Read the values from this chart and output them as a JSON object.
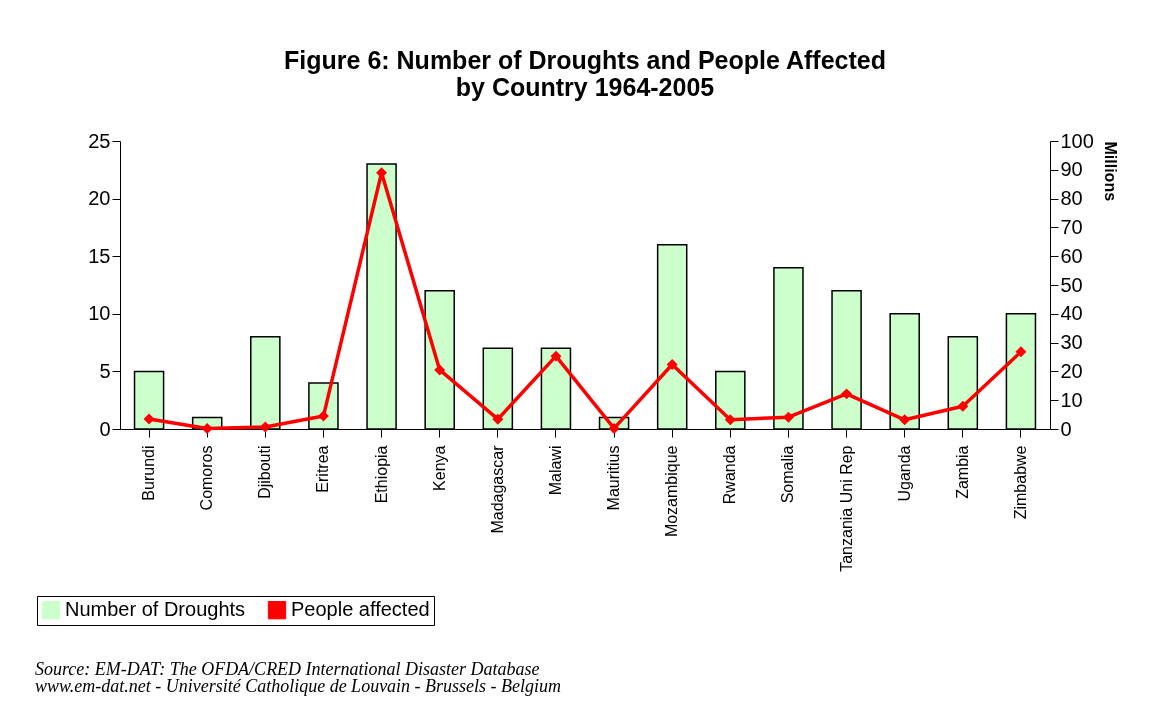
{
  "chart_data": {
    "type": "bar",
    "title": [
      "Figure 6: Number of Droughts and People Affected",
      "by Country 1964-2005"
    ],
    "categories": [
      "Burundi",
      "Comoros",
      "Djibouti",
      "Eritrea",
      "Ethiopia",
      "Kenya",
      "Madagascar",
      "Malawi",
      "Mauritius",
      "Mozambique",
      "Rwanda",
      "Somalia",
      "Tanzania Uni Rep",
      "Uganda",
      "Zambia",
      "Zimbabwe"
    ],
    "series": [
      {
        "name": "Number of Droughts",
        "color": "#ccffcc",
        "values": [
          5,
          1,
          8,
          4,
          23,
          12,
          7,
          7,
          1,
          16,
          5,
          14,
          12,
          10,
          8,
          10
        ]
      },
      {
        "name": "People affected",
        "type": "line",
        "axis": "y2",
        "color": "#ff0000",
        "marker": "diamond",
        "values": [
          3.5,
          0.2,
          0.7,
          4.5,
          89,
          20.5,
          3.4,
          25.3,
          0.2,
          22.4,
          3.2,
          4.1,
          12.2,
          3.2,
          7.9,
          26.8
        ]
      }
    ],
    "ylim": [
      0,
      25
    ],
    "yticks": [
      0,
      5,
      10,
      15,
      20,
      25
    ],
    "y2lim": [
      0,
      100
    ],
    "y2ticks": [
      0,
      10,
      20,
      30,
      40,
      50,
      60,
      70,
      80,
      90,
      100
    ],
    "y2label": "Millions",
    "legend": "bottom left",
    "grid": false,
    "annotations": [
      "Source: EM-DAT: The OFDA/CRED International Disaster Database",
      "www.em-dat.net - Université Catholique de Louvain - Brussels - Belgium"
    ]
  }
}
